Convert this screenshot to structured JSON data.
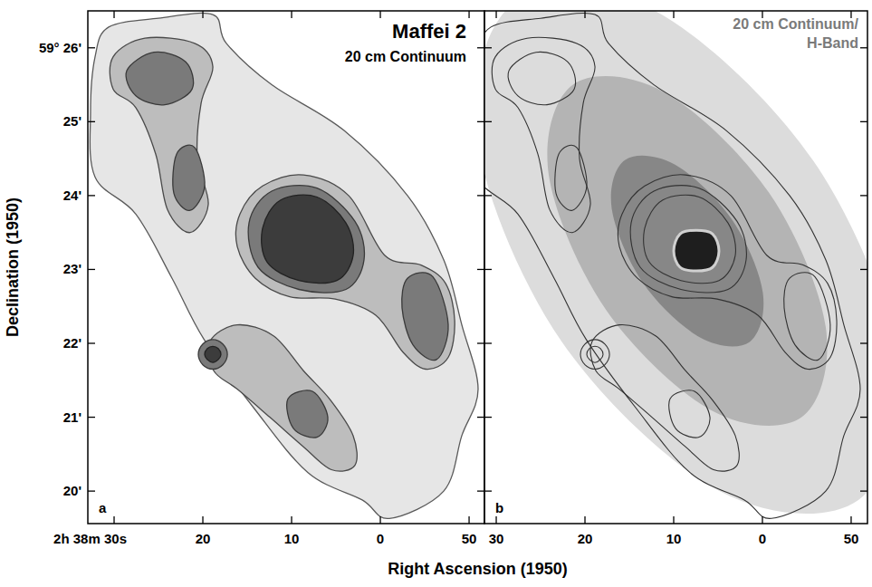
{
  "chart_data": {
    "type": "contour",
    "title": "Maffei 2",
    "x_label": "Right Ascension (1950)",
    "y_label": "Declination (1950)",
    "grid": false,
    "ylim": [
      19.56,
      26.5
    ],
    "yticks": [
      {
        "value": 26,
        "label": "59° 26'"
      },
      {
        "value": 25,
        "label": "25'"
      },
      {
        "value": 24,
        "label": "24'"
      },
      {
        "value": 23,
        "label": "23'"
      },
      {
        "value": 22,
        "label": "22'"
      },
      {
        "value": 21,
        "label": "21'"
      },
      {
        "value": 20,
        "label": "20'"
      }
    ],
    "contours": [
      {
        "level": 1,
        "ra": [
          32.14,
          30.61,
          25.0,
          18.88,
          17.35,
          12.24,
          4.08,
          -3.06,
          -7.14,
          -9.18,
          -11.02,
          -9.18,
          -7.14,
          -1.02,
          2.04,
          8.16,
          14.29,
          19.9,
          23.47,
          27.55,
          32.14,
          32.65
        ],
        "dec": [
          25.88,
          26.28,
          26.4,
          26.45,
          26.06,
          25.5,
          24.88,
          24.0,
          23.13,
          22.25,
          21.38,
          20.75,
          20.0,
          19.63,
          19.88,
          20.25,
          21.13,
          22.06,
          22.88,
          23.75,
          24.25,
          25.13
        ]
      },
      {
        "level": 2,
        "ra": [
          30.1,
          26.53,
          20.92,
          18.88,
          20.2,
          20.61,
          19.39,
          21.43,
          23.98,
          25.31,
          27.55,
          30.1
        ],
        "dec": [
          25.88,
          26.13,
          26.06,
          25.75,
          25.25,
          24.5,
          23.88,
          23.5,
          23.81,
          24.56,
          25.19,
          25.44
        ]
      },
      {
        "level": 2,
        "ra": [
          15.82,
          13.27,
          8.67,
          3.57,
          -0.51,
          -4.59,
          -7.35,
          -8.37,
          -7.65,
          -5.1,
          -2.55,
          0.51,
          5.1,
          10.2,
          14.08,
          16.12
        ],
        "dec": [
          23.75,
          24.13,
          24.28,
          24.0,
          23.19,
          23.06,
          22.81,
          22.31,
          21.81,
          21.65,
          21.88,
          22.38,
          22.6,
          22.63,
          22.88,
          23.31
        ]
      },
      {
        "level": 2,
        "ra": [
          19.18,
          16.12,
          12.04,
          8.67,
          5.61,
          3.06,
          2.86,
          5.51,
          8.67,
          12.45,
          16.12,
          18.78
        ],
        "dec": [
          22.03,
          22.25,
          22.1,
          21.63,
          21.23,
          20.75,
          20.35,
          20.29,
          20.6,
          21.0,
          21.38,
          21.63
        ]
      },
      {
        "level": 3,
        "ra": [
          28.57,
          25.51,
          21.94,
          21.22,
          24.29,
          27.55
        ],
        "dec": [
          25.69,
          25.94,
          25.81,
          25.44,
          25.23,
          25.35
        ]
      },
      {
        "level": 3,
        "ra": [
          22.96,
          20.92,
          19.8,
          21.43,
          23.27
        ],
        "dec": [
          24.56,
          24.65,
          24.13,
          23.8,
          24.03
        ]
      },
      {
        "level": 3,
        "ra": [
          14.8,
          12.24,
          7.14,
          2.86,
          1.84,
          3.88,
          9.18,
          13.78
        ],
        "dec": [
          23.63,
          24.06,
          24.1,
          23.65,
          23.13,
          22.73,
          22.73,
          23.03
        ]
      },
      {
        "level": 3,
        "ra": [
          -3.06,
          -5.92,
          -7.65,
          -6.33,
          -3.67,
          -2.45
        ],
        "dec": [
          22.88,
          22.9,
          22.25,
          21.78,
          21.98,
          22.48
        ]
      },
      {
        "level": 3,
        "ra": [
          10.41,
          7.65,
          5.92,
          7.14,
          9.8
        ],
        "dec": [
          21.25,
          21.35,
          21.0,
          20.73,
          20.85
        ]
      },
      {
        "level": 3,
        "ra": [
          18.88,
          17.76,
          17.24,
          17.76,
          18.88,
          20.0,
          20.51,
          20.0
        ],
        "dec": [
          22.05,
          21.99,
          21.85,
          21.71,
          21.65,
          21.71,
          21.85,
          21.99
        ]
      },
      {
        "level": 4,
        "ra": [
          13.27,
          11.22,
          7.14,
          3.88,
          3.06,
          4.9,
          9.18,
          12.76
        ],
        "dec": [
          23.56,
          23.94,
          23.98,
          23.63,
          23.19,
          22.85,
          22.85,
          23.1
        ]
      },
      {
        "level": 4,
        "ra": [
          18.88,
          18.27,
          17.96,
          18.27,
          18.88,
          19.49,
          19.8,
          19.49
        ],
        "dec": [
          21.96,
          21.93,
          21.85,
          21.78,
          21.74,
          21.78,
          21.85,
          21.93
        ]
      }
    ],
    "h_band": [
      {
        "level": 1,
        "ra": [
          -10.82,
          4.85,
          22.67,
          32.17,
          27.8,
          12.09,
          -5.74,
          -15.24
        ],
        "dec": [
          19.88,
          20.0,
          22.03,
          24.78,
          26.63,
          26.5,
          24.47,
          21.72
        ]
      },
      {
        "level": 2,
        "ra": [
          -4.42,
          5.86,
          17.66,
          24.08,
          21.36,
          11.08,
          -0.73,
          -7.14
        ],
        "dec": [
          21.0,
          21.1,
          22.46,
          24.28,
          25.5,
          25.4,
          24.04,
          22.22
        ]
      },
      {
        "level": 3,
        "ra": [
          1.44,
          7.04,
          13.48,
          16.98,
          15.5,
          9.9,
          3.46,
          -0.04
        ],
        "dec": [
          22.02,
          22.08,
          22.82,
          23.82,
          24.48,
          24.42,
          23.68,
          22.69
        ]
      },
      {
        "level": 4,
        "ra": [
          4.9,
          5.61,
          7.45,
          9.29,
          10.0,
          9.29,
          7.45,
          5.61
        ],
        "dec": [
          23.25,
          23.03,
          22.98,
          23.03,
          23.25,
          23.48,
          23.53,
          23.48
        ]
      }
    ],
    "panels": [
      {
        "type": "continuum",
        "letter": "a",
        "subtitle": "20 cm Continuum",
        "xlim": [
          32.96,
          -11.73
        ],
        "xticks": [
          {
            "value": 30,
            "label": "2h 38m 30s"
          },
          {
            "value": 20,
            "label": "20"
          },
          {
            "value": 10,
            "label": "10"
          },
          {
            "value": 0,
            "label": "0"
          },
          {
            "value": -10,
            "label": "50"
          }
        ]
      },
      {
        "type": "overlay",
        "letter": "b",
        "subtitle_lines": [
          "20 cm Continuum/",
          "H-Band"
        ],
        "xlim": [
          31.33,
          -11.84
        ],
        "xticks": [
          {
            "value": 30,
            "label": "30"
          },
          {
            "value": 20,
            "label": "20"
          },
          {
            "value": 10,
            "label": "10"
          },
          {
            "value": 0,
            "label": "0"
          },
          {
            "value": -10,
            "label": "50"
          }
        ]
      }
    ]
  }
}
